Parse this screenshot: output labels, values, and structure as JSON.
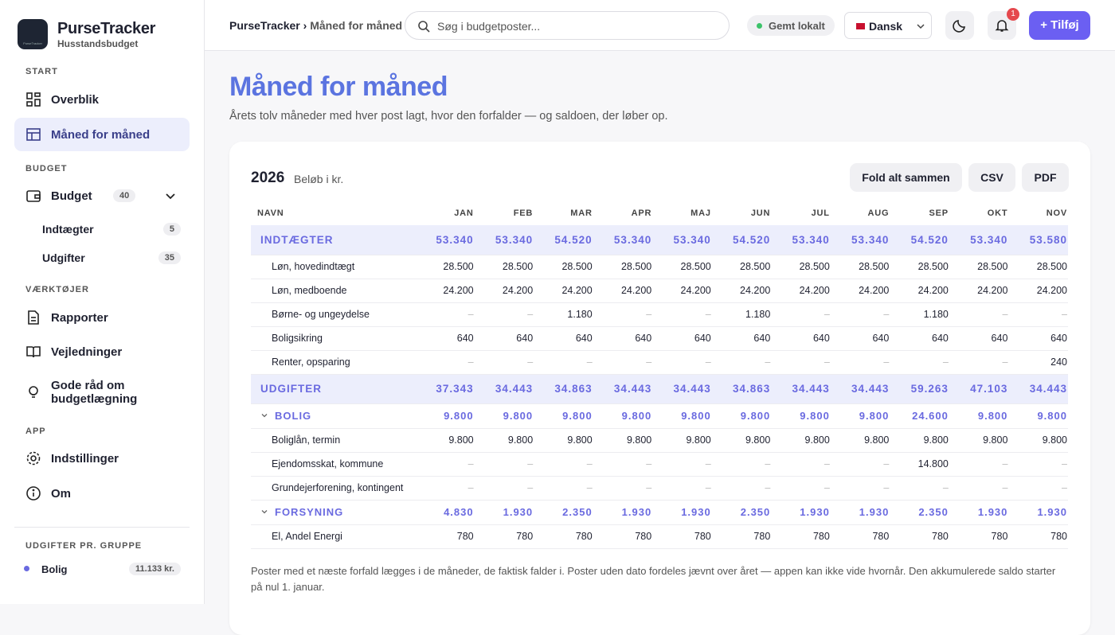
{
  "sidebar": {
    "logo_text": "PurseTracker",
    "brand": "PurseTracker",
    "tagline": "Husstandsbudget",
    "sections": [
      {
        "label": "START",
        "items": [
          {
            "label": "Overblik"
          },
          {
            "label": "Måned for måned"
          }
        ]
      },
      {
        "label": "BUDGET",
        "items": [
          {
            "label": "Budget",
            "count": "40"
          },
          {
            "label": "Indtægter",
            "count": "5"
          },
          {
            "label": "Udgifter",
            "count": "35"
          }
        ]
      },
      {
        "label": "VÆRKTØJER",
        "items": [
          {
            "label": "Rapporter"
          },
          {
            "label": "Vejledninger"
          },
          {
            "label": "Gode råd om budgetlægning"
          }
        ]
      },
      {
        "label": "APP",
        "items": [
          {
            "label": "Indstillinger"
          },
          {
            "label": "Om"
          }
        ]
      }
    ],
    "groups": {
      "label": "UDGIFTER PR. GRUPPE",
      "items": [
        {
          "label": "Bolig",
          "amount": "11.133 kr."
        }
      ]
    }
  },
  "topbar": {
    "breadcrumb": [
      "PurseTracker",
      "Måned for måned"
    ],
    "search_placeholder": "Søg i budgetposter...",
    "status": "Gemt lokalt",
    "language": "Dansk",
    "notifications": "1",
    "add_button": "+ Tilføj"
  },
  "page": {
    "title": "Måned for måned",
    "subtitle": "Årets tolv måneder med hver post lagt, hvor den forfalder — og saldoen, der løber op.",
    "year": "2026",
    "unit": "Beløb i kr.",
    "buttons": [
      "Fold alt sammen",
      "CSV",
      "PDF"
    ],
    "footnote": "Poster med et næste forfald lægges i de måneder, de faktisk falder i. Poster uden dato fordeles jævnt over året — appen kan ikke vide hvornår. Den akkumulerede saldo starter på nul 1. januar."
  },
  "table": {
    "columns": [
      "NAVN",
      "JAN",
      "FEB",
      "MAR",
      "APR",
      "MAJ",
      "JUN",
      "JUL",
      "AUG",
      "SEP",
      "OKT",
      "NOV"
    ],
    "income": {
      "label": "INDTÆGTER",
      "totals": [
        "53.340",
        "53.340",
        "54.520",
        "53.340",
        "53.340",
        "54.520",
        "53.340",
        "53.340",
        "54.520",
        "53.340",
        "53.580"
      ],
      "rows": [
        {
          "label": "Løn, hovedindtægt",
          "values": [
            "28.500",
            "28.500",
            "28.500",
            "28.500",
            "28.500",
            "28.500",
            "28.500",
            "28.500",
            "28.500",
            "28.500",
            "28.500"
          ]
        },
        {
          "label": "Løn, medboende",
          "values": [
            "24.200",
            "24.200",
            "24.200",
            "24.200",
            "24.200",
            "24.200",
            "24.200",
            "24.200",
            "24.200",
            "24.200",
            "24.200"
          ]
        },
        {
          "label": "Børne- og ungeydelse",
          "values": [
            "–",
            "–",
            "1.180",
            "–",
            "–",
            "1.180",
            "–",
            "–",
            "1.180",
            "–",
            "–"
          ]
        },
        {
          "label": "Boligsikring",
          "values": [
            "640",
            "640",
            "640",
            "640",
            "640",
            "640",
            "640",
            "640",
            "640",
            "640",
            "640"
          ]
        },
        {
          "label": "Renter, opsparing",
          "values": [
            "–",
            "–",
            "–",
            "–",
            "–",
            "–",
            "–",
            "–",
            "–",
            "–",
            "240"
          ]
        }
      ]
    },
    "expenses": {
      "label": "UDGIFTER",
      "totals": [
        "37.343",
        "34.443",
        "34.863",
        "34.443",
        "34.443",
        "34.863",
        "34.443",
        "34.443",
        "59.263",
        "47.103",
        "34.443"
      ],
      "groups": [
        {
          "label": "BOLIG",
          "totals": [
            "9.800",
            "9.800",
            "9.800",
            "9.800",
            "9.800",
            "9.800",
            "9.800",
            "9.800",
            "24.600",
            "9.800",
            "9.800"
          ],
          "rows": [
            {
              "label": "Boliglån, termin",
              "values": [
                "9.800",
                "9.800",
                "9.800",
                "9.800",
                "9.800",
                "9.800",
                "9.800",
                "9.800",
                "9.800",
                "9.800",
                "9.800"
              ]
            },
            {
              "label": "Ejendomsskat, kommune",
              "values": [
                "–",
                "–",
                "–",
                "–",
                "–",
                "–",
                "–",
                "–",
                "14.800",
                "–",
                "–"
              ]
            },
            {
              "label": "Grundejerforening, kontingent",
              "values": [
                "–",
                "–",
                "–",
                "–",
                "–",
                "–",
                "–",
                "–",
                "–",
                "–",
                "–"
              ]
            }
          ]
        },
        {
          "label": "FORSYNING",
          "totals": [
            "4.830",
            "1.930",
            "2.350",
            "1.930",
            "1.930",
            "2.350",
            "1.930",
            "1.930",
            "2.350",
            "1.930",
            "1.930"
          ],
          "rows": [
            {
              "label": "El, Andel Energi",
              "values": [
                "780",
                "780",
                "780",
                "780",
                "780",
                "780",
                "780",
                "780",
                "780",
                "780",
                "780"
              ]
            }
          ]
        }
      ]
    }
  }
}
